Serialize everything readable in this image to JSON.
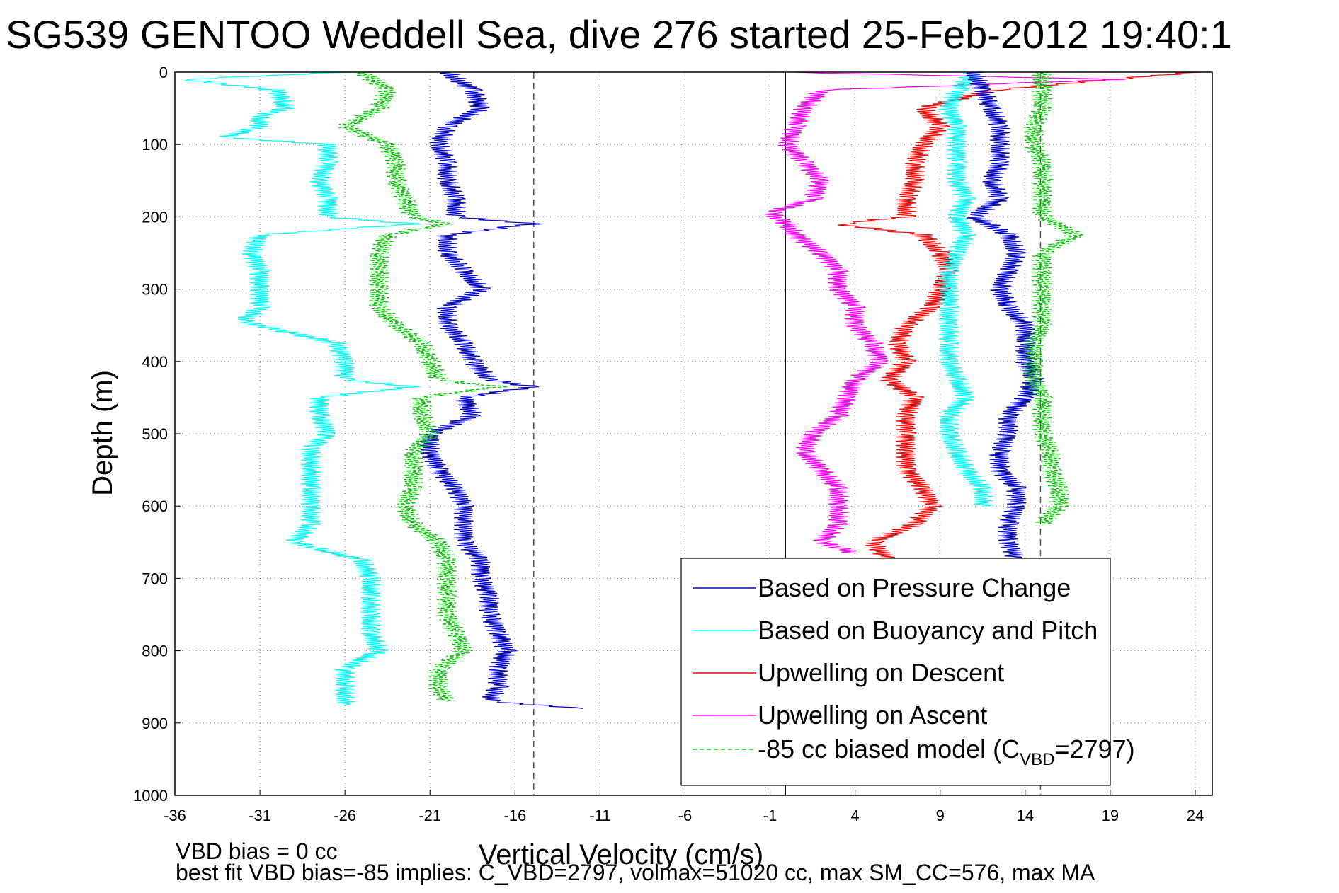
{
  "chart_data": {
    "type": "line",
    "title": "SG539 GENTOO Weddell Sea, dive 276 started 25-Feb-2012 19:40:1",
    "xlabel": "Vertical Velocity (cm/s)",
    "ylabel": "Depth (m)",
    "xlim": [
      -36,
      25
    ],
    "ylim": [
      0,
      1000
    ],
    "y_reversed": true,
    "x_ticks": [
      "-36",
      "-31",
      "-26",
      "-21",
      "-16",
      "-11",
      "-6",
      "-1",
      "4",
      "9",
      "14",
      "19",
      "24"
    ],
    "y_ticks": [
      "0",
      "100",
      "200",
      "300",
      "400",
      "500",
      "600",
      "700",
      "800",
      "900",
      "1000"
    ],
    "grid": true,
    "legend_position": "bottom-right",
    "legend": [
      {
        "label": "Based on Pressure Change",
        "color": "#0000cc",
        "dash": "solid"
      },
      {
        "label": "Based on Buoyancy and Pitch",
        "color": "#00ffff",
        "dash": "solid"
      },
      {
        "label": "Upwelling on Descent",
        "color": "#ff0000",
        "dash": "solid"
      },
      {
        "label": "Upwelling on Ascent",
        "color": "#ff00ff",
        "dash": "solid"
      },
      {
        "label": "-85 cc biased model (C",
        "sub": "VBD",
        "suffix": "=2797)",
        "color": "#00cc00",
        "dash": "dashed"
      }
    ],
    "reference_lines": [
      {
        "x": -14.9,
        "style": "dashed",
        "color": "#555555"
      },
      {
        "x": -0.1,
        "style": "solid",
        "color": "#000000"
      },
      {
        "x": 14.9,
        "style": "dashed",
        "color": "#555555"
      }
    ],
    "series": [
      {
        "color": "#0000cc",
        "dash": "solid",
        "depth": [
          0,
          25,
          50,
          75,
          100,
          125,
          150,
          175,
          200,
          210,
          225,
          250,
          275,
          300,
          325,
          350,
          375,
          400,
          425,
          435,
          450,
          475,
          500,
          525,
          550,
          575,
          600,
          625,
          650,
          675,
          700,
          725,
          750,
          775,
          800,
          825,
          850,
          870,
          880
        ],
        "velocity": [
          -20,
          -18.5,
          -18,
          -20,
          -20.5,
          -20,
          -20,
          -19.5,
          -19.5,
          -15,
          -20,
          -20,
          -19,
          -18,
          -20,
          -20,
          -19,
          -18.5,
          -17.5,
          -15,
          -19,
          -18.5,
          -21,
          -21,
          -20.5,
          -19.5,
          -19,
          -19,
          -19,
          -18,
          -18,
          -17.5,
          -17.5,
          -17,
          -16.5,
          -17,
          -17,
          -17.5,
          -12
        ]
      },
      {
        "color": "#00ffff",
        "dash": "solid",
        "depth": [
          0,
          10,
          25,
          50,
          60,
          75,
          90,
          100,
          125,
          150,
          175,
          200,
          210,
          225,
          250,
          275,
          300,
          325,
          345,
          375,
          400,
          425,
          435,
          450,
          475,
          500,
          520,
          550,
          575,
          600,
          625,
          650,
          675,
          700,
          725,
          750,
          775,
          800,
          825,
          850,
          875
        ],
        "velocity": [
          -26,
          -35.5,
          -30,
          -29.5,
          -31,
          -31,
          -33,
          -27,
          -27,
          -27.5,
          -27,
          -27,
          -22,
          -31,
          -31.5,
          -31,
          -31,
          -31,
          -32,
          -26.5,
          -26,
          -26,
          -22,
          -27.5,
          -27.5,
          -27,
          -28,
          -28,
          -28,
          -28,
          -28,
          -29,
          -25,
          -24.5,
          -24.5,
          -24.5,
          -24.5,
          -24,
          -26,
          -26,
          -26
        ]
      },
      {
        "color": "#00cc00",
        "dash": "dashed",
        "depth": [
          0,
          25,
          50,
          75,
          100,
          125,
          150,
          175,
          200,
          210,
          225,
          250,
          275,
          300,
          325,
          350,
          375,
          400,
          425,
          435,
          450,
          475,
          500,
          525,
          550,
          575,
          600,
          625,
          650,
          675,
          700,
          725,
          750,
          775,
          800,
          825,
          850,
          870
        ],
        "velocity": [
          -25,
          -23.5,
          -24,
          -26,
          -23.5,
          -23,
          -23,
          -22.5,
          -22,
          -20,
          -23.5,
          -24,
          -24,
          -24,
          -24,
          -23,
          -21.5,
          -21,
          -20.5,
          -17,
          -21.5,
          -21.5,
          -21,
          -22,
          -22,
          -22,
          -22.5,
          -22,
          -20.5,
          -20,
          -20,
          -20,
          -20,
          -19.5,
          -19,
          -20.5,
          -20.5,
          -20
        ]
      },
      {
        "color": "#ff0000",
        "dash": "solid",
        "depth": [
          0,
          25,
          50,
          75,
          100,
          125,
          150,
          175,
          200,
          210,
          225,
          250,
          275,
          300,
          325,
          350,
          375,
          400,
          425,
          450,
          475,
          500,
          525,
          550,
          575,
          600,
          625,
          650,
          675
        ],
        "velocity": [
          24,
          12,
          8,
          9,
          8,
          7.5,
          7.5,
          7,
          7,
          3,
          8,
          9,
          9.5,
          9,
          8.5,
          7,
          6.5,
          7,
          6,
          7.5,
          7,
          7,
          7,
          7,
          8,
          8.5,
          7.5,
          5,
          6
        ]
      },
      {
        "color": "#ff00ff",
        "dash": "solid",
        "depth": [
          0,
          10,
          25,
          50,
          75,
          100,
          125,
          150,
          175,
          195,
          210,
          225,
          250,
          275,
          300,
          325,
          350,
          375,
          400,
          425,
          450,
          475,
          500,
          525,
          550,
          575,
          600,
          625,
          650,
          665
        ],
        "velocity": [
          0,
          19.5,
          2,
          1,
          0.5,
          0,
          1,
          2,
          1.5,
          -1,
          0,
          0.5,
          2,
          3,
          3,
          4,
          4,
          5,
          5.5,
          4,
          3.5,
          3,
          1.5,
          1,
          2,
          3,
          3,
          3,
          2,
          4
        ]
      }
    ],
    "right_side_series": [
      {
        "color": "#00ffff",
        "dash": "solid",
        "depth": [
          0,
          25,
          50,
          75,
          100,
          125,
          150,
          175,
          200,
          225,
          250,
          275,
          300,
          325,
          350,
          375,
          400,
          425,
          450,
          475,
          500,
          525,
          550,
          575,
          600
        ],
        "velocity": [
          11,
          10,
          9.5,
          10,
          10,
          10,
          10,
          10.5,
          10,
          10.5,
          10,
          9.5,
          9.5,
          9.5,
          9.5,
          9.5,
          9.5,
          10,
          10.5,
          9.5,
          9.5,
          10,
          10.5,
          11.5,
          11.5
        ]
      },
      {
        "color": "#0000cc",
        "dash": "solid",
        "depth": [
          0,
          25,
          50,
          75,
          100,
          125,
          150,
          175,
          200,
          225,
          250,
          275,
          300,
          325,
          350,
          375,
          400,
          425,
          450,
          475,
          500,
          525,
          550,
          575,
          600,
          625,
          650,
          675
        ],
        "velocity": [
          11,
          11.5,
          12,
          12.5,
          12.5,
          12.5,
          12,
          12.5,
          11,
          13,
          13.5,
          13,
          12.5,
          13,
          14,
          14,
          14,
          14.5,
          14,
          13,
          13,
          12.5,
          12.5,
          13.5,
          13.5,
          13,
          13,
          13.5
        ]
      },
      {
        "color": "#00cc00",
        "dash": "dashed",
        "depth": [
          0,
          25,
          50,
          75,
          100,
          125,
          150,
          175,
          200,
          225,
          250,
          275,
          300,
          325,
          350,
          375,
          400,
          425,
          450,
          475,
          500,
          525,
          550,
          575,
          600,
          625
        ],
        "velocity": [
          15,
          15,
          15,
          14.5,
          14.5,
          15,
          15,
          15,
          15,
          17,
          15,
          15,
          15,
          15,
          15,
          14.5,
          14.5,
          14.5,
          15,
          15,
          15,
          15.5,
          15.5,
          16,
          16,
          15
        ]
      }
    ]
  },
  "footer": {
    "line1": "VBD bias = 0 cc",
    "line2": "best fit VBD bias=-85 implies: C_VBD=2797, volmax=51020 cc, max SM_CC=576, max MA"
  }
}
